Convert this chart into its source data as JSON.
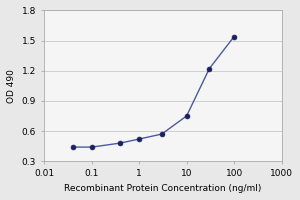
{
  "x": [
    0.04,
    0.1,
    0.4,
    1.0,
    3.0,
    10.0,
    30.0,
    100.0
  ],
  "y": [
    0.44,
    0.44,
    0.48,
    0.52,
    0.57,
    0.75,
    1.22,
    1.54
  ],
  "line_color": "#4d5a9a",
  "marker_color": "#1a2060",
  "marker": "o",
  "marker_size": 3.5,
  "line_width": 1.0,
  "xlabel": "Recombinant Protein Concentration (ng/ml)",
  "ylabel": "OD 490",
  "xlim": [
    0.01,
    1000
  ],
  "ylim": [
    0.3,
    1.8
  ],
  "yticks": [
    0.3,
    0.6,
    0.9,
    1.2,
    1.5,
    1.8
  ],
  "xtick_positions": [
    0.01,
    0.1,
    1,
    10,
    100,
    1000
  ],
  "xtick_labels": [
    "0.01",
    "0.1",
    "1",
    "10",
    "100",
    "1000"
  ],
  "figure_bg_color": "#e8e8e8",
  "plot_bg_color": "#f5f5f5",
  "grid_color": "#c8c8c8",
  "spine_color": "#aaaaaa",
  "xlabel_fontsize": 6.5,
  "ylabel_fontsize": 6.5,
  "tick_fontsize": 6.5
}
